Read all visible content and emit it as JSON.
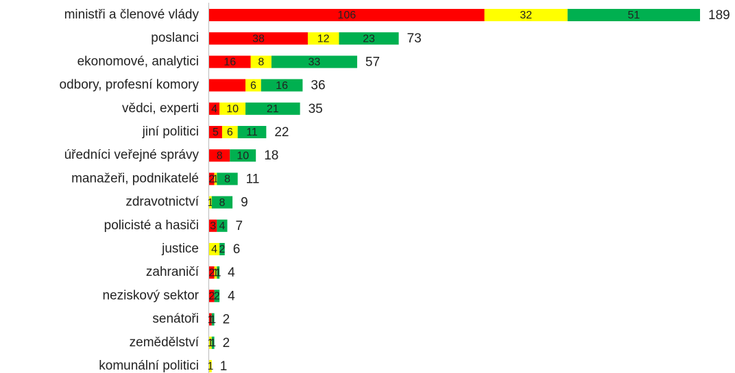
{
  "chart_data": {
    "type": "stacked-bar-horizontal",
    "categories": [
      "ministři a členové vlády",
      "poslanci",
      "ekonomové, analytici",
      "odbory, profesní komory",
      "vědci, experti",
      "jiní politici",
      "úředníci veřejné správy",
      "manažeři, podnikatelé",
      "zdravotnictví",
      "policisté a hasiči",
      "justice",
      "zahraničí",
      "neziskový sektor",
      "senátoři",
      "zemědělství",
      "komunální politici"
    ],
    "series": [
      {
        "color": "#ff0000",
        "values": [
          106,
          38,
          16,
          14,
          4,
          5,
          8,
          2,
          0,
          3,
          0,
          2,
          2,
          1,
          0,
          0
        ],
        "value_labels": [
          "106",
          "38",
          "16",
          null,
          "4",
          "5",
          "8",
          "2",
          null,
          "3",
          null,
          "2",
          "2",
          "1",
          null,
          null
        ]
      },
      {
        "color": "#ffff00",
        "values": [
          32,
          12,
          8,
          6,
          10,
          6,
          0,
          1,
          1,
          0,
          4,
          1,
          0,
          0,
          1,
          1
        ]
      },
      {
        "color": "#00b050",
        "values": [
          51,
          23,
          33,
          16,
          21,
          11,
          10,
          8,
          8,
          4,
          2,
          1,
          2,
          1,
          1,
          0
        ]
      }
    ],
    "totals": [
      189,
      73,
      57,
      36,
      35,
      22,
      18,
      11,
      9,
      7,
      6,
      4,
      4,
      2,
      2,
      1
    ]
  }
}
